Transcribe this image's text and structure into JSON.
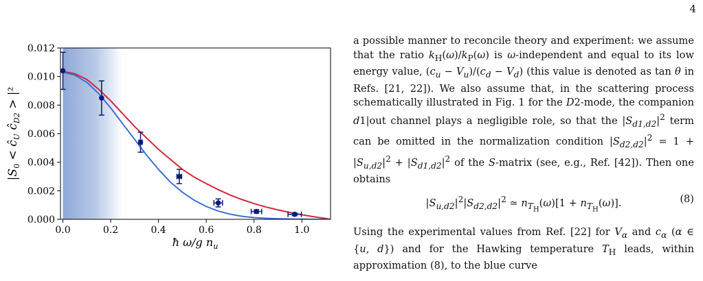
{
  "page_number": "4",
  "chart_data": {
    "type": "line",
    "xlabel": "ħ ω/g n_u",
    "ylabel": "|S₀ < ĉ_U ĉ_D2 >|²",
    "xlim": [
      -0.01,
      1.12
    ],
    "ylim": [
      0.0,
      0.012
    ],
    "x_ticks": [
      "0.0",
      "0.2",
      "0.4",
      "0.6",
      "0.8",
      "1.0"
    ],
    "x_tick_values": [
      0.0,
      0.2,
      0.4,
      0.6,
      0.8,
      1.0
    ],
    "y_ticks": [
      "0.000",
      "0.002",
      "0.004",
      "0.006",
      "0.008",
      "0.010",
      "0.012"
    ],
    "y_tick_values": [
      0.0,
      0.002,
      0.004,
      0.006,
      0.008,
      0.01,
      0.012
    ],
    "grid": false,
    "shaded_region": {
      "x": [
        0.0,
        0.25
      ],
      "color_start": "#8fa8d8",
      "color_end": "#ffffff"
    },
    "series": [
      {
        "type": "line",
        "color": "#d0273b",
        "x": [
          0.0,
          0.05,
          0.1,
          0.15,
          0.2,
          0.25,
          0.3,
          0.35,
          0.4,
          0.45,
          0.5,
          0.55,
          0.6,
          0.65,
          0.7,
          0.75,
          0.8,
          0.85,
          0.9,
          0.95,
          1.0,
          1.05,
          1.1,
          1.12
        ],
        "y": [
          0.01035,
          0.0102,
          0.0098,
          0.0091,
          0.0083,
          0.0074,
          0.0065,
          0.0057,
          0.0049,
          0.0042,
          0.0035,
          0.00295,
          0.0025,
          0.00208,
          0.0017,
          0.00138,
          0.0011,
          0.00086,
          0.00066,
          0.00048,
          0.00032,
          0.00018,
          6e-05,
          0.0
        ]
      },
      {
        "type": "line",
        "color": "#3b6fd4",
        "x": [
          0.0,
          0.05,
          0.1,
          0.15,
          0.2,
          0.25,
          0.3,
          0.35,
          0.4,
          0.45,
          0.5,
          0.55,
          0.6,
          0.65,
          0.7,
          0.75,
          0.8,
          0.85,
          0.9,
          0.95,
          1.0,
          1.05,
          1.1,
          1.12
        ],
        "y": [
          0.0103,
          0.0101,
          0.0096,
          0.0088,
          0.0078,
          0.0067,
          0.0056,
          0.0045,
          0.0035,
          0.0026,
          0.0019,
          0.00133,
          0.0009,
          0.00058,
          0.00036,
          0.00021,
          0.00012,
          7e-05,
          4e-05,
          2e-05,
          1e-05,
          0.0,
          0.0,
          0.0
        ]
      },
      {
        "type": "errorbar",
        "color": "#0a1a7a",
        "points": [
          {
            "x": 0.0,
            "y": 0.0104,
            "yerr": 0.0013,
            "xerr": 0.0
          },
          {
            "x": 0.162,
            "y": 0.0085,
            "yerr": 0.0012,
            "xerr": 0.0
          },
          {
            "x": 0.325,
            "y": 0.0054,
            "yerr": 0.0007,
            "xerr": 0.007
          },
          {
            "x": 0.487,
            "y": 0.003,
            "yerr": 0.0005,
            "xerr": 0.01
          },
          {
            "x": 0.65,
            "y": 0.00115,
            "yerr": 0.00028,
            "xerr": 0.018
          },
          {
            "x": 0.81,
            "y": 0.00055,
            "yerr": 0.00012,
            "xerr": 0.022
          },
          {
            "x": 0.97,
            "y": 0.00035,
            "yerr": 0.0001,
            "xerr": 0.028
          }
        ]
      }
    ]
  },
  "text": {
    "p1": "a possible manner to reconcile theory and experiment: we assume that the ratio k_H(ω)/k_P(ω) is ω-independent and equal to its low energy value, (c_u − V_u)/(c_d − V_d) (this value is denoted as tan θ in Refs. [21, 22]). We also assume that, in the scattering process schematically illustrated in Fig. 1 for the D2-mode, the companion d1|out channel plays a negligible role, so that the |S_d1,d2|² term can be omitted in the normalization condition |S_d2,d2|² = 1 + |S_u,d2|² + |S_d1,d2|² of the S-matrix (see, e.g., Ref. [42]). Then one obtains",
    "eq": "|S_u,d2|² |S_d2,d2|² ≃ n_TH(ω)[1 + n_TH(ω)].",
    "eq_number": "(8)",
    "p2": "Using the experimental values from Ref. [22] for V_α and c_α (α ∈ {u, d}) and for the Hawking temperature T_H leads, within approximation (8), to the blue curve"
  }
}
